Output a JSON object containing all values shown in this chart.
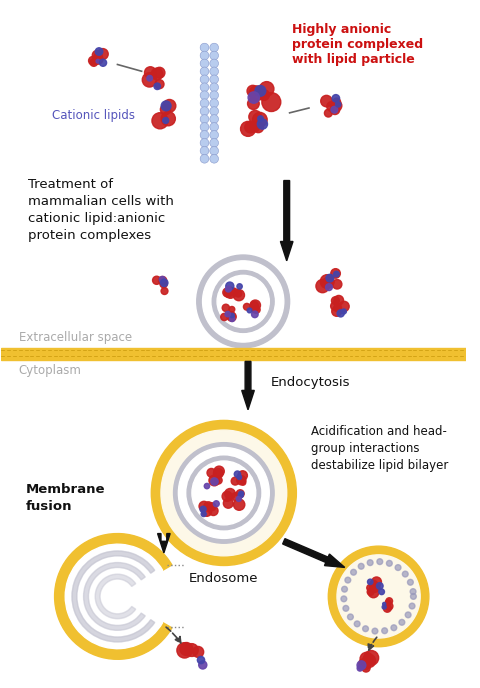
{
  "background_color": "#ffffff",
  "text_elements": {
    "highly_anionic": "Highly anionic\nprotein complexed\nwith lipid particle",
    "cationic_lipids": "Cationic lipids",
    "treatment": "Treatment of\nmammalian cells with\ncationic lipid:anionic\nprotein complexes",
    "extracellular": "Extracellular space",
    "cytoplasm": "Cytoplasm",
    "endocytosis": "Endocytosis",
    "acidification": "Acidification and head-\ngroup interactions\ndestabilize lipid bilayer",
    "membrane_fusion": "Membrane\nfusion",
    "endosome": "Endosome"
  },
  "colors": {
    "red_protein": "#c82020",
    "blue_protein": "#4444aa",
    "purple_protein": "#6644aa",
    "cationic_lipid_circle": "#b8ccee",
    "lipid_gold_outer": "#d4a020",
    "lipid_gold_fill": "#f0c030",
    "cell_gray": "#c0c0cc",
    "cell_light": "#e8e8f0",
    "arrow_color": "#111111",
    "membrane_bar": "#c8980a",
    "extracellular_text": "#aaaaaa",
    "cytoplasm_text": "#aaaaaa",
    "highly_anionic_text": "#cc1111",
    "cationic_lipids_text": "#5555bb",
    "black_text": "#111111",
    "gray_dot": "#9999bb"
  },
  "figsize": [
    4.8,
    6.88
  ],
  "dpi": 100
}
